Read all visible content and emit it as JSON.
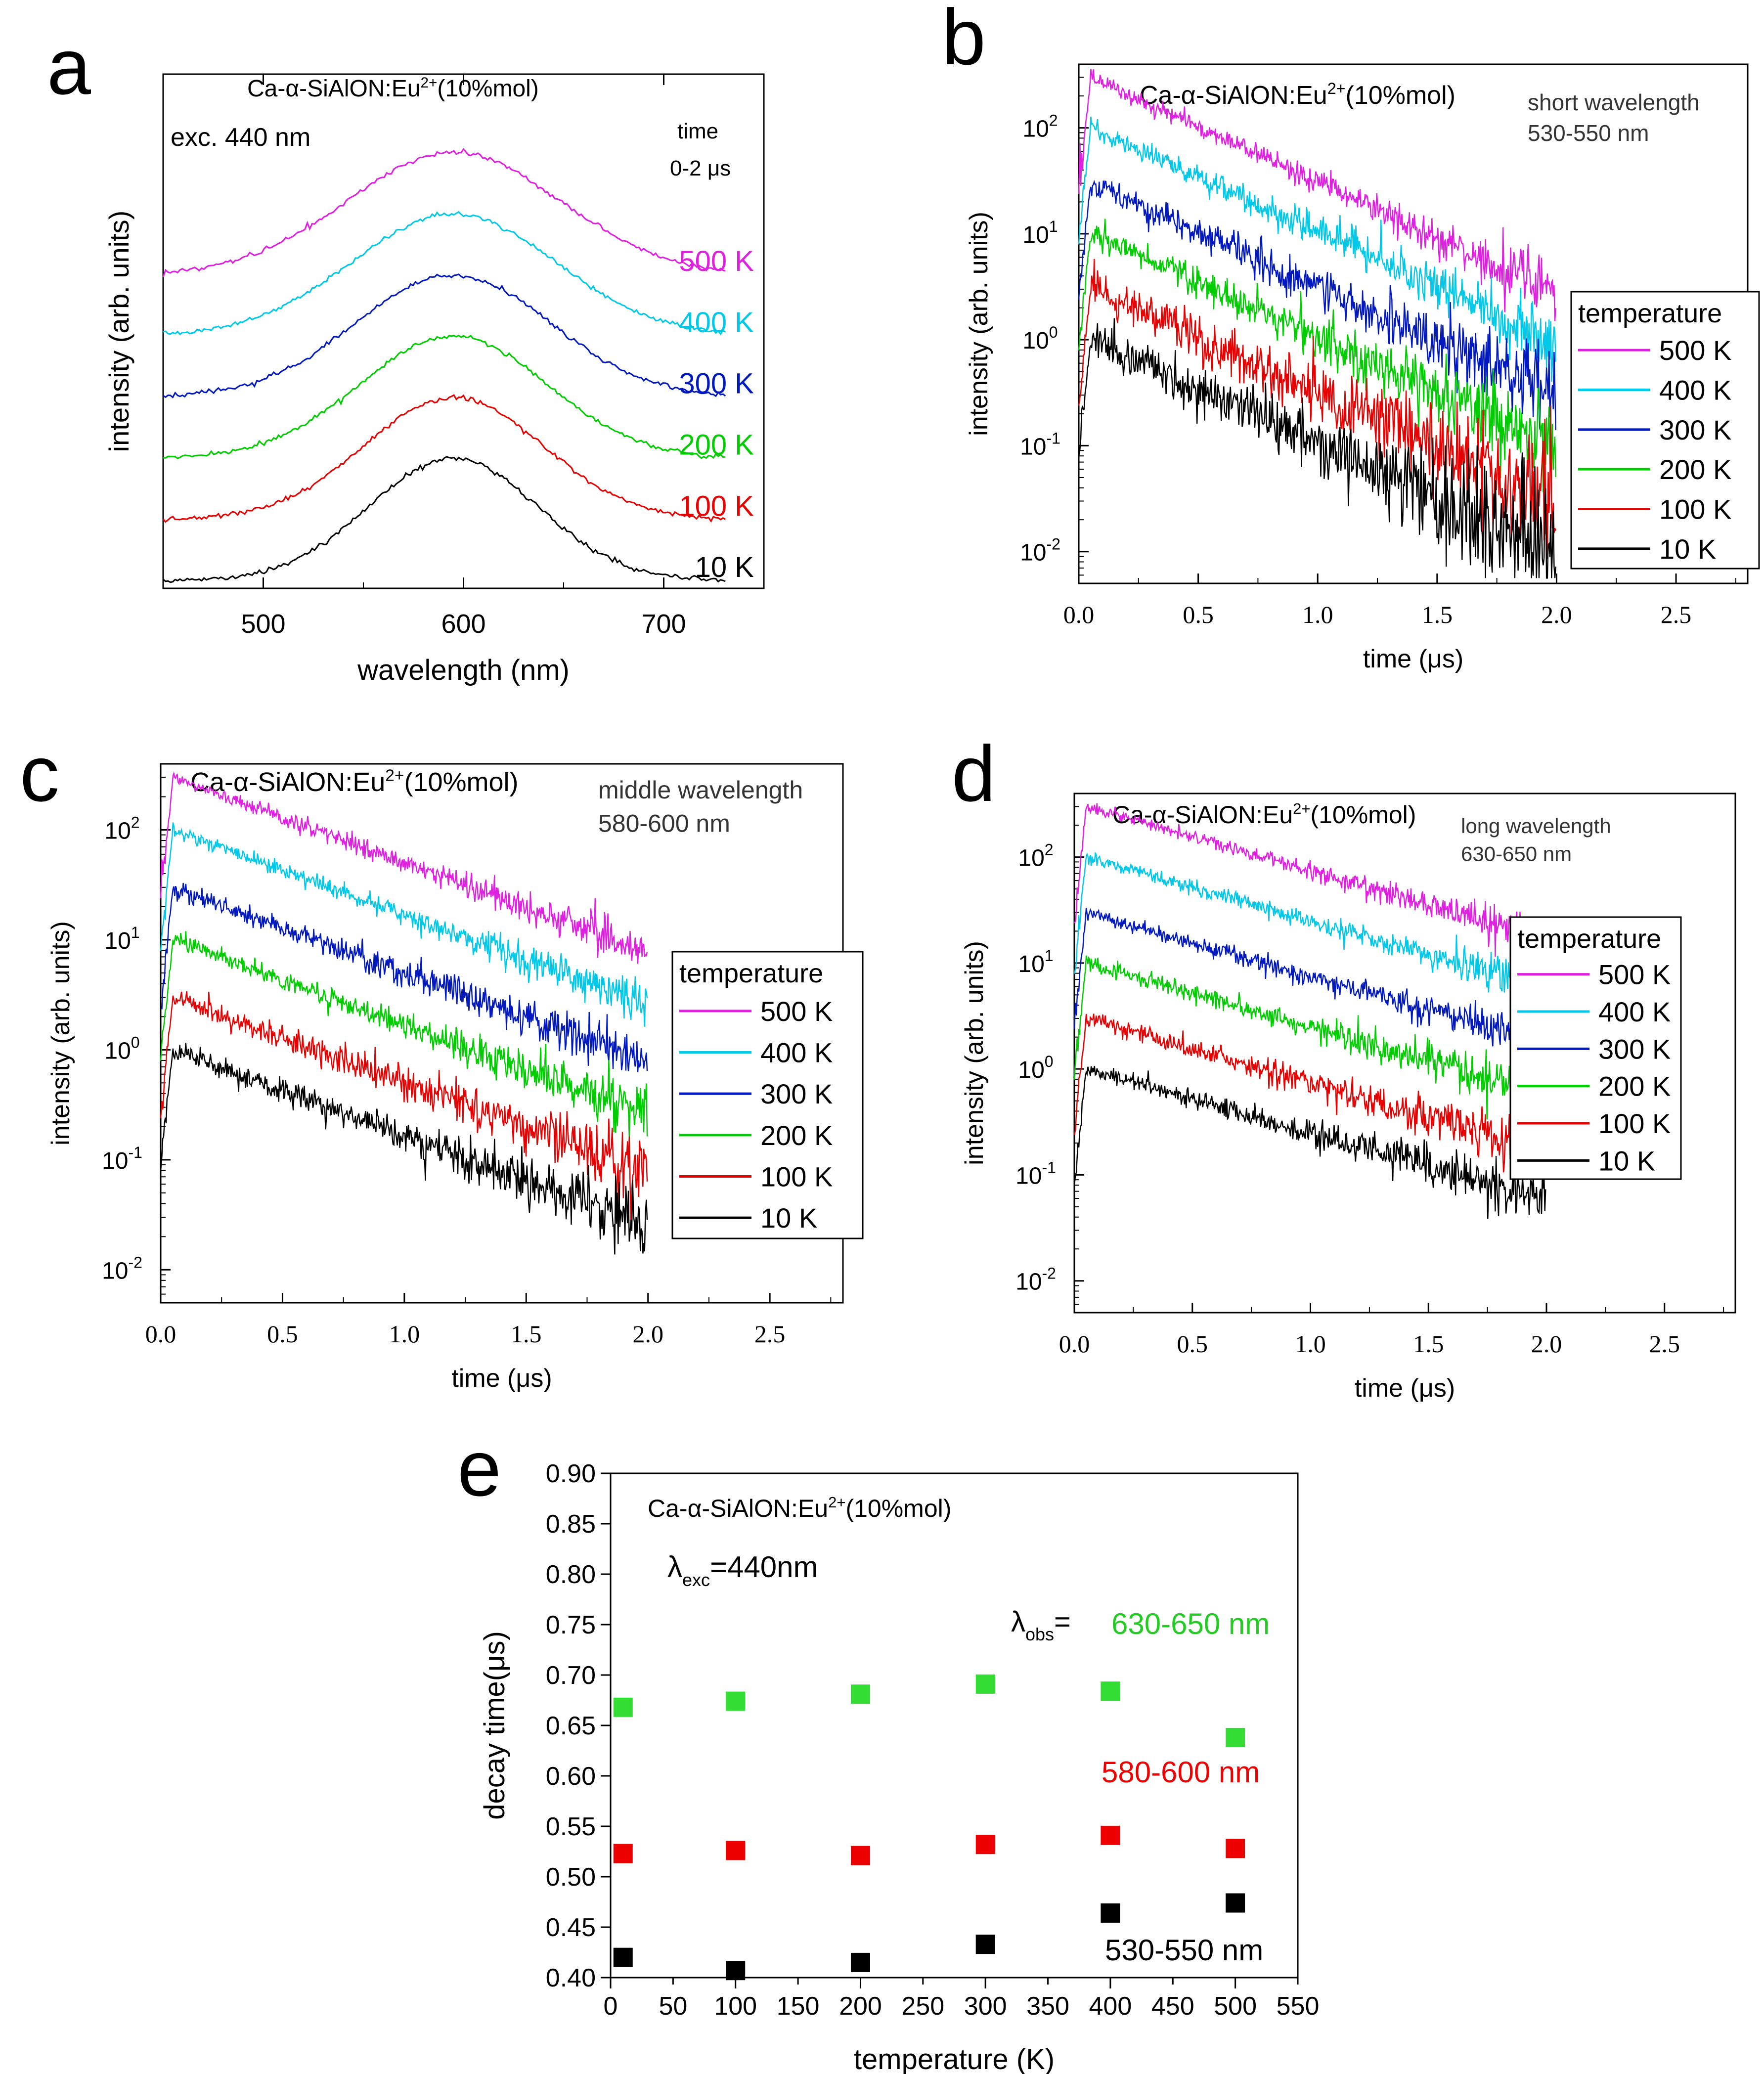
{
  "figure": {
    "panel_letters": [
      "a",
      "b",
      "c",
      "d",
      "e"
    ]
  },
  "chart_data": [
    {
      "panel": "a",
      "type": "line",
      "title": "Ca-α-SiAlON:Eu2+(10%mol)",
      "title_main": "Ca-α-SiAlON:Eu",
      "title_sup": "2+",
      "title_tail": "(10%mol)",
      "xlabel": "wavelength (nm)",
      "ylabel": "intensity (arb. units)",
      "xlim": [
        450,
        750
      ],
      "ylim": [
        0,
        8.4
      ],
      "xticks": [
        500,
        600,
        700
      ],
      "annotations": [
        "exc. 440 nm",
        "time",
        "0-2 μs"
      ],
      "peak_nm": 595,
      "series": [
        {
          "name": "500 K",
          "color": "#e020e0",
          "offset": 5.0,
          "amplitude": 2.0,
          "fwhm": 125
        },
        {
          "name": "400 K",
          "color": "#00c8e8",
          "offset": 4.0,
          "amplitude": 2.0,
          "fwhm": 120
        },
        {
          "name": "300 K",
          "color": "#0018c0",
          "offset": 3.0,
          "amplitude": 2.0,
          "fwhm": 115
        },
        {
          "name": "200 K",
          "color": "#00cc00",
          "offset": 2.0,
          "amplitude": 2.0,
          "fwhm": 110
        },
        {
          "name": "100 K",
          "color": "#e80000",
          "offset": 1.0,
          "amplitude": 2.0,
          "fwhm": 105
        },
        {
          "name": "10 K",
          "color": "#000000",
          "offset": 0.0,
          "amplitude": 2.0,
          "fwhm": 100
        }
      ]
    },
    {
      "panel": "b",
      "type": "line",
      "title": "Ca-α-SiAlON:Eu2+(10%mol)",
      "title_main": "Ca-α-SiAlON:Eu",
      "title_sup": "2+",
      "title_tail": "(10%mol)",
      "annotation": [
        "short wavelength",
        "530-550 nm"
      ],
      "xlabel": "time (μs)",
      "ylabel": "intensity (arb. units)",
      "yscale": "log",
      "xlim": [
        0,
        2.8
      ],
      "ylim_log10": [
        -2.3,
        2.6
      ],
      "xticks": [
        "0.0",
        "0.5",
        "1.0",
        "1.5",
        "2.0",
        "2.5"
      ],
      "ytick_exponents": [
        2,
        1,
        0,
        -1,
        -2
      ],
      "legend_title": "temperature",
      "legend_position": "right",
      "series": [
        {
          "name": "500 K",
          "color": "#e020e0",
          "peak": 300,
          "decay_us": 0.42,
          "noise": 0.04
        },
        {
          "name": "400 K",
          "color": "#00c8e8",
          "peak": 100,
          "decay_us": 0.42,
          "noise": 0.05
        },
        {
          "name": "300 K",
          "color": "#0018c0",
          "peak": 30,
          "decay_us": 0.42,
          "noise": 0.06
        },
        {
          "name": "200 K",
          "color": "#00cc00",
          "peak": 10,
          "decay_us": 0.42,
          "noise": 0.07
        },
        {
          "name": "100 K",
          "color": "#e80000",
          "peak": 3,
          "decay_us": 0.42,
          "noise": 0.09
        },
        {
          "name": "10 K",
          "color": "#000000",
          "peak": 1,
          "decay_us": 0.42,
          "noise": 0.1
        }
      ]
    },
    {
      "panel": "c",
      "type": "line",
      "title": "Ca-α-SiAlON:Eu2+(10%mol)",
      "title_main": "Ca-α-SiAlON:Eu",
      "title_sup": "2+",
      "title_tail": "(10%mol)",
      "annotation": [
        "middle wavelength",
        "580-600 nm"
      ],
      "xlabel": "time (μs)",
      "ylabel": "intensity (arb. units)",
      "yscale": "log",
      "xlim": [
        0,
        2.8
      ],
      "ylim_log10": [
        -2.3,
        2.6
      ],
      "xticks": [
        "0.0",
        "0.5",
        "1.0",
        "1.5",
        "2.0",
        "2.5"
      ],
      "ytick_exponents": [
        2,
        1,
        0,
        -1,
        -2
      ],
      "legend_title": "temperature",
      "legend_position": "right",
      "series": [
        {
          "name": "500 K",
          "color": "#e020e0",
          "peak": 300,
          "decay_us": 0.53,
          "noise": 0.03
        },
        {
          "name": "400 K",
          "color": "#00c8e8",
          "peak": 100,
          "decay_us": 0.53,
          "noise": 0.03
        },
        {
          "name": "300 K",
          "color": "#0018c0",
          "peak": 30,
          "decay_us": 0.53,
          "noise": 0.04
        },
        {
          "name": "200 K",
          "color": "#00cc00",
          "peak": 10,
          "decay_us": 0.53,
          "noise": 0.04
        },
        {
          "name": "100 K",
          "color": "#e80000",
          "peak": 3,
          "decay_us": 0.53,
          "noise": 0.05
        },
        {
          "name": "10 K",
          "color": "#000000",
          "peak": 1,
          "decay_us": 0.53,
          "noise": 0.05
        }
      ]
    },
    {
      "panel": "d",
      "type": "line",
      "title": "Ca-α-SiAlON:Eu2+(10%mol)",
      "title_main": "Ca-α-SiAlON:Eu",
      "title_sup": "2+",
      "title_tail": "(10%mol)",
      "annotation": [
        "long wavelength",
        "630-650 nm"
      ],
      "xlabel": "time (μs)",
      "ylabel": "intensity (arb. units)",
      "yscale": "log",
      "xlim": [
        0,
        2.8
      ],
      "ylim_log10": [
        -2.3,
        2.6
      ],
      "xticks": [
        "0.0",
        "0.5",
        "1.0",
        "1.5",
        "2.0",
        "2.5"
      ],
      "ytick_exponents": [
        2,
        1,
        0,
        -1,
        -2
      ],
      "legend_title": "temperature",
      "legend_position": "right",
      "series": [
        {
          "name": "500 K",
          "color": "#e020e0",
          "peak": 300,
          "decay_us": 0.68,
          "noise": 0.03
        },
        {
          "name": "400 K",
          "color": "#00c8e8",
          "peak": 100,
          "decay_us": 0.68,
          "noise": 0.03
        },
        {
          "name": "300 K",
          "color": "#0018c0",
          "peak": 30,
          "decay_us": 0.68,
          "noise": 0.03
        },
        {
          "name": "200 K",
          "color": "#00cc00",
          "peak": 10,
          "decay_us": 0.68,
          "noise": 0.04
        },
        {
          "name": "100 K",
          "color": "#e80000",
          "peak": 3,
          "decay_us": 0.68,
          "noise": 0.04
        },
        {
          "name": "10 K",
          "color": "#000000",
          "peak": 1,
          "decay_us": 0.68,
          "noise": 0.04
        }
      ]
    },
    {
      "panel": "e",
      "type": "scatter",
      "title": "Ca-α-SiAlON:Eu2+(10%mol)",
      "title_main": "Ca-α-SiAlON:Eu",
      "title_sup": "2+",
      "title_tail": "(10%mol)",
      "exc_symbol": "λ",
      "exc_sub": "exc",
      "exc_value": "=440nm",
      "obs_symbol": "λ",
      "obs_sub": "obs",
      "obs_eq": "=",
      "xlabel": "temperature (K)",
      "ylabel": "decay time(μs)",
      "xlim": [
        0,
        550
      ],
      "ylim": [
        0.4,
        0.9
      ],
      "xticks": [
        "0",
        "50",
        "100",
        "150",
        "200",
        "250",
        "300",
        "350",
        "400",
        "450",
        "500",
        "550"
      ],
      "yticks": [
        "0.40",
        "0.45",
        "0.50",
        "0.55",
        "0.60",
        "0.65",
        "0.70",
        "0.75",
        "0.80",
        "0.85",
        "0.90"
      ],
      "x": [
        10,
        100,
        200,
        300,
        400,
        500
      ],
      "series": [
        {
          "name": "630-650 nm",
          "color": "#33dd33",
          "values": [
            0.668,
            0.674,
            0.681,
            0.691,
            0.684,
            0.638
          ]
        },
        {
          "name": "580-600 nm",
          "color": "#ee0000",
          "values": [
            0.523,
            0.526,
            0.521,
            0.532,
            0.541,
            0.528
          ]
        },
        {
          "name": "530-550 nm",
          "color": "#000000",
          "values": [
            0.42,
            0.407,
            0.415,
            0.433,
            0.464,
            0.474
          ]
        }
      ]
    }
  ]
}
